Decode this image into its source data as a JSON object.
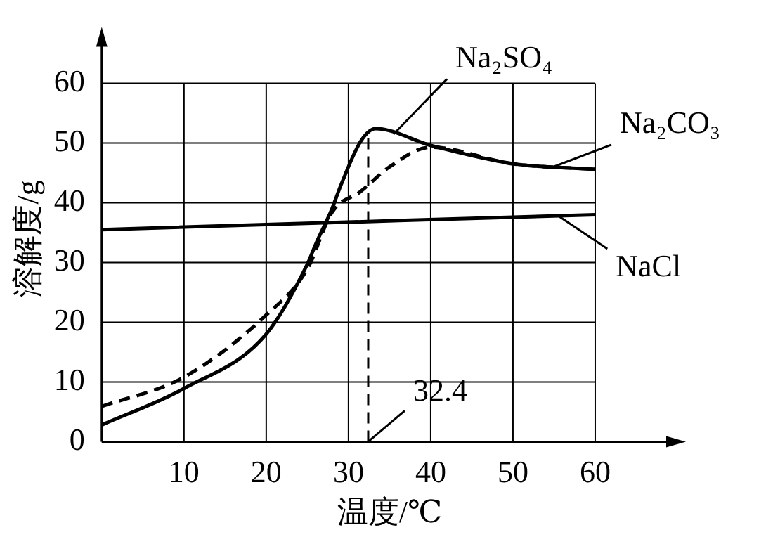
{
  "chart_data": {
    "type": "line",
    "xlabel": "温度/℃",
    "ylabel": "溶解度/g",
    "xlim": [
      0,
      70
    ],
    "ylim": [
      0,
      68
    ],
    "xticks": [
      10,
      20,
      30,
      40,
      50,
      60
    ],
    "yticks": [
      0,
      10,
      20,
      30,
      40,
      50,
      60
    ],
    "grid": true,
    "legend": false,
    "marker": "none",
    "series": [
      {
        "name": "Na₂SO₄",
        "color": "#000000",
        "line_style": "solid",
        "x": [
          0,
          10,
          20,
          25,
          26,
          28,
          29.1,
          31.5,
          33.3,
          40,
          50.2,
          60
        ],
        "values": [
          2.8,
          8.9,
          18,
          29.7,
          33,
          39,
          43,
          50.3,
          52.4,
          49.6,
          46.5,
          45.6
        ]
      },
      {
        "name": "Na₂CO₃",
        "color": "#000000",
        "line_style": "dashed",
        "x": [
          0,
          10,
          20,
          25,
          28,
          31.5,
          35,
          40,
          50,
          60
        ],
        "values": [
          5.9,
          10.8,
          21.2,
          28.9,
          38.4,
          41.9,
          46,
          49.3,
          46.5,
          45.6
        ]
      },
      {
        "name": "NaCl",
        "color": "#000000",
        "line_style": "solid",
        "x": [
          0,
          60
        ],
        "values": [
          35.5,
          38
        ]
      }
    ],
    "ref_lines": [
      {
        "axis": "x",
        "value": 32.4,
        "label": "32.4",
        "line_style": "dashed"
      }
    ]
  }
}
